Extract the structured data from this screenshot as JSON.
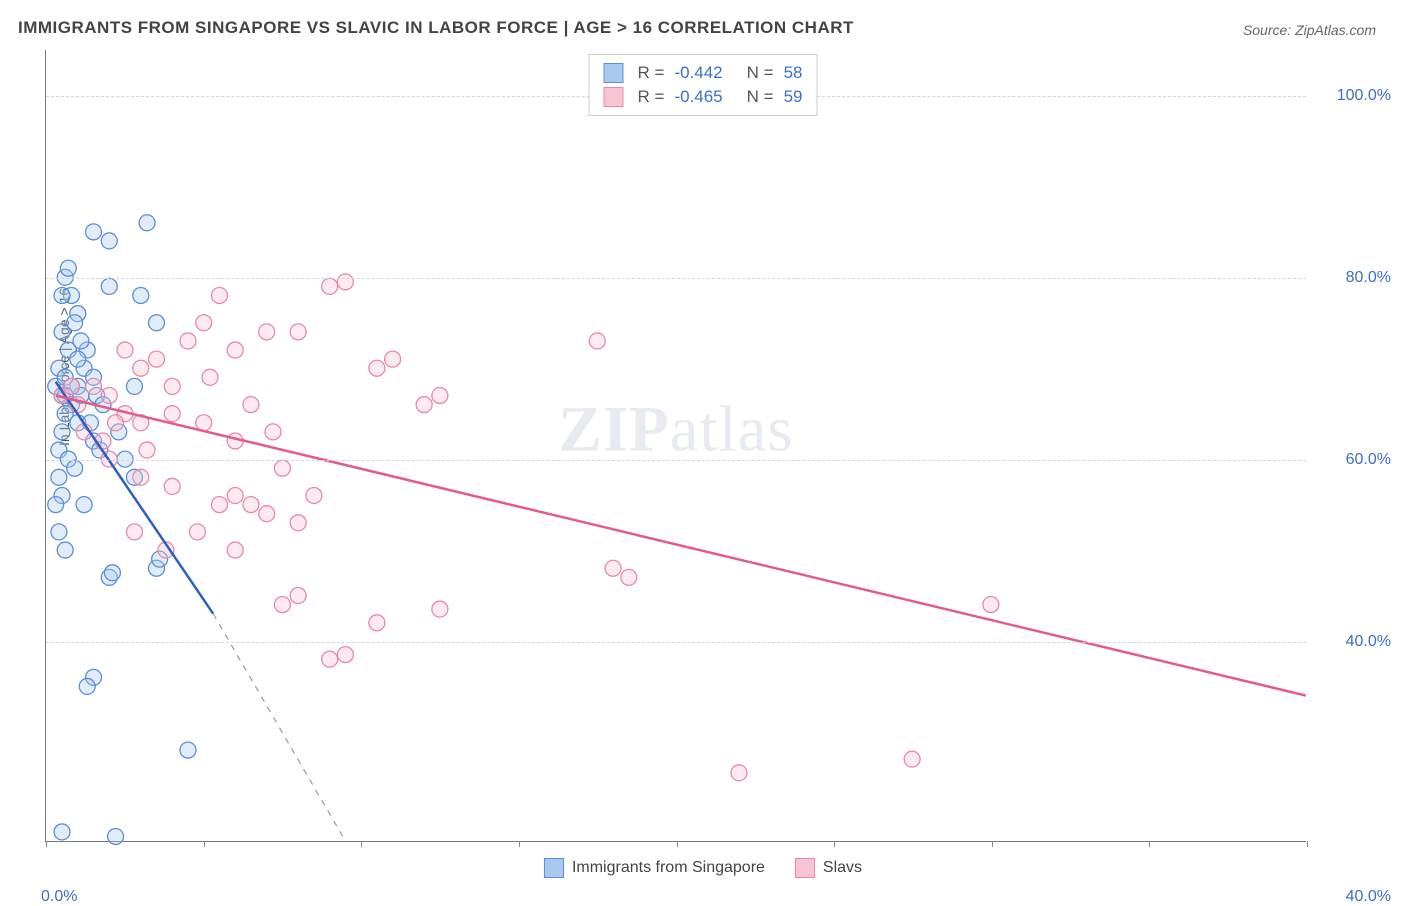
{
  "title": "IMMIGRANTS FROM SINGAPORE VS SLAVIC IN LABOR FORCE | AGE > 16 CORRELATION CHART",
  "source": "Source: ZipAtlas.com",
  "watermark_zip": "ZIP",
  "watermark_atlas": "atlas",
  "ylabel": "In Labor Force | Age > 16",
  "chart": {
    "type": "scatter-correlation",
    "background_color": "#ffffff",
    "grid_color": "#d5d5d5",
    "axis_color": "#777777",
    "tick_label_color": "#3b6fc9",
    "xlim": [
      0,
      40
    ],
    "ylim": [
      18,
      105
    ],
    "xtick_positions": [
      0,
      5,
      10,
      15,
      20,
      25,
      30,
      35,
      40
    ],
    "xtick_labels_shown": {
      "0": "0.0%",
      "40": "40.0%"
    },
    "ygrid_positions": [
      40,
      60,
      80,
      100
    ],
    "ytick_labels": {
      "40": "40.0%",
      "60": "60.0%",
      "80": "80.0%",
      "100": "100.0%"
    },
    "marker_radius": 8,
    "marker_fill_opacity": 0.35,
    "marker_stroke_width": 1.3,
    "trend_line_width": 2.5,
    "trend_dash_width": 1.2
  },
  "series": [
    {
      "name": "Immigrants from Singapore",
      "color_fill": "#a8c8ef",
      "color_stroke": "#5b8fd6",
      "line_color": "#2b5fc0",
      "R": "-0.442",
      "N": "58",
      "trend": {
        "x1": 0.3,
        "y1": 68.5,
        "x2_solid": 5.3,
        "y2_solid": 43,
        "x2_dash": 9.5,
        "y2_dash": 18
      },
      "points": [
        [
          0.3,
          68
        ],
        [
          0.4,
          70
        ],
        [
          0.5,
          67
        ],
        [
          0.6,
          69
        ],
        [
          0.7,
          72
        ],
        [
          0.8,
          66
        ],
        [
          0.5,
          74
        ],
        [
          0.6,
          65
        ],
        [
          0.4,
          61
        ],
        [
          0.5,
          63
        ],
        [
          0.7,
          60
        ],
        [
          0.9,
          59
        ],
        [
          1.0,
          68
        ],
        [
          1.1,
          67
        ],
        [
          1.2,
          70
        ],
        [
          1.3,
          72
        ],
        [
          1.5,
          69
        ],
        [
          1.6,
          67
        ],
        [
          1.8,
          66
        ],
        [
          2.0,
          79
        ],
        [
          0.6,
          80
        ],
        [
          0.8,
          78
        ],
        [
          1.0,
          76
        ],
        [
          0.5,
          56
        ],
        [
          1.2,
          55
        ],
        [
          0.4,
          58
        ],
        [
          2.0,
          84
        ],
        [
          3.2,
          86
        ],
        [
          1.5,
          85
        ],
        [
          3.0,
          78
        ],
        [
          1.5,
          62
        ],
        [
          2.5,
          60
        ],
        [
          2.8,
          68
        ],
        [
          2.0,
          47
        ],
        [
          2.1,
          47.5
        ],
        [
          3.5,
          48
        ],
        [
          3.6,
          49
        ],
        [
          4.5,
          28
        ],
        [
          1.5,
          36
        ],
        [
          1.3,
          35
        ],
        [
          0.5,
          19
        ],
        [
          2.2,
          18.5
        ],
        [
          3.5,
          75
        ],
        [
          0.9,
          75
        ],
        [
          0.3,
          55
        ],
        [
          0.4,
          52
        ],
        [
          0.6,
          50
        ],
        [
          1.0,
          64
        ],
        [
          1.4,
          64
        ],
        [
          1.7,
          61
        ],
        [
          2.3,
          63
        ],
        [
          2.8,
          58
        ],
        [
          0.5,
          78
        ],
        [
          0.7,
          81
        ],
        [
          1.1,
          73
        ],
        [
          1.0,
          71
        ],
        [
          0.8,
          68
        ],
        [
          0.6,
          67
        ]
      ]
    },
    {
      "name": "Slavs",
      "color_fill": "#f7c4d2",
      "color_stroke": "#e989a8",
      "line_color": "#e55a8a",
      "R": "-0.465",
      "N": "59",
      "trend": {
        "x1": 0.3,
        "y1": 67,
        "x2_solid": 40,
        "y2_solid": 34,
        "x2_dash": 40,
        "y2_dash": 34
      },
      "points": [
        [
          0.5,
          67
        ],
        [
          0.8,
          68
        ],
        [
          1.0,
          66
        ],
        [
          1.5,
          68
        ],
        [
          2.0,
          67
        ],
        [
          2.5,
          72
        ],
        [
          3.0,
          70
        ],
        [
          3.5,
          71
        ],
        [
          4.0,
          68
        ],
        [
          4.5,
          73
        ],
        [
          5.0,
          75
        ],
        [
          5.5,
          78
        ],
        [
          6.0,
          72
        ],
        [
          7.0,
          74
        ],
        [
          8.0,
          74
        ],
        [
          2.0,
          60
        ],
        [
          2.5,
          65
        ],
        [
          3.0,
          64
        ],
        [
          4.0,
          65
        ],
        [
          5.0,
          64
        ],
        [
          6.0,
          62
        ],
        [
          9.0,
          79
        ],
        [
          9.5,
          79.5
        ],
        [
          10.5,
          70
        ],
        [
          11.0,
          71
        ],
        [
          12.0,
          66
        ],
        [
          12.5,
          67
        ],
        [
          5.5,
          55
        ],
        [
          6.0,
          56
        ],
        [
          6.5,
          55
        ],
        [
          7.0,
          54
        ],
        [
          7.5,
          59
        ],
        [
          8.0,
          53
        ],
        [
          8.5,
          56
        ],
        [
          3.0,
          58
        ],
        [
          6.0,
          50
        ],
        [
          7.5,
          44
        ],
        [
          8.0,
          45
        ],
        [
          9.0,
          38
        ],
        [
          9.5,
          38.5
        ],
        [
          10.5,
          42
        ],
        [
          12.5,
          43.5
        ],
        [
          18.0,
          48
        ],
        [
          18.5,
          47
        ],
        [
          17.5,
          73
        ],
        [
          22.0,
          25.5
        ],
        [
          30.0,
          44
        ],
        [
          27.5,
          27
        ],
        [
          1.8,
          62
        ],
        [
          2.2,
          64
        ],
        [
          3.2,
          61
        ],
        [
          4.0,
          57
        ],
        [
          5.2,
          69
        ],
        [
          6.5,
          66
        ],
        [
          7.2,
          63
        ],
        [
          4.8,
          52
        ],
        [
          3.8,
          50
        ],
        [
          2.8,
          52
        ],
        [
          1.2,
          63
        ]
      ]
    }
  ],
  "bottom_legend": [
    {
      "label": "Immigrants from Singapore",
      "fill": "#a8c8ef",
      "stroke": "#5b8fd6"
    },
    {
      "label": "Slavs",
      "fill": "#f7c4d2",
      "stroke": "#e989a8"
    }
  ]
}
